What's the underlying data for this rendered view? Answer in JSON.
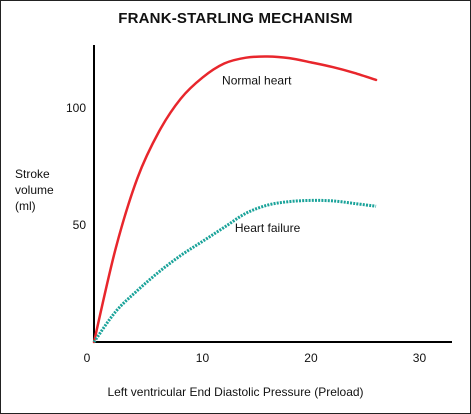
{
  "chart_data": {
    "type": "line",
    "title": "FRANK-STARLING MECHANISM",
    "xlabel": "Left ventricular End Diastolic Pressure (Preload)",
    "ylabel_lines": [
      "Stroke",
      "volume",
      "(ml)"
    ],
    "xlim": [
      0,
      33
    ],
    "ylim": [
      0,
      125
    ],
    "x_ticks": [
      0,
      10,
      20,
      30
    ],
    "y_ticks": [
      50,
      100
    ],
    "grid": false,
    "series": [
      {
        "name": "Normal heart",
        "color": "#e8262c",
        "style": "solid",
        "x": [
          0,
          2,
          4,
          6,
          8,
          10,
          12,
          14,
          16,
          18,
          20,
          22,
          24,
          26
        ],
        "y": [
          0,
          40,
          70,
          90,
          104,
          113,
          119,
          121.5,
          122,
          121.3,
          119.5,
          117.5,
          115,
          112
        ]
      },
      {
        "name": "Heart failure",
        "color": "#1aa39a",
        "style": "dotted",
        "x": [
          0,
          2,
          4,
          6,
          8,
          10,
          12,
          14,
          16,
          18,
          20,
          22,
          24,
          26
        ],
        "y": [
          0,
          13,
          22,
          30,
          37,
          43,
          49,
          55,
          58.5,
          60,
          60.5,
          60.3,
          59.2,
          58
        ]
      }
    ],
    "annotations": [
      {
        "text": "Normal heart",
        "x": 15,
        "y": 110
      },
      {
        "text": "Heart failure",
        "x": 16,
        "y": 47
      }
    ]
  }
}
